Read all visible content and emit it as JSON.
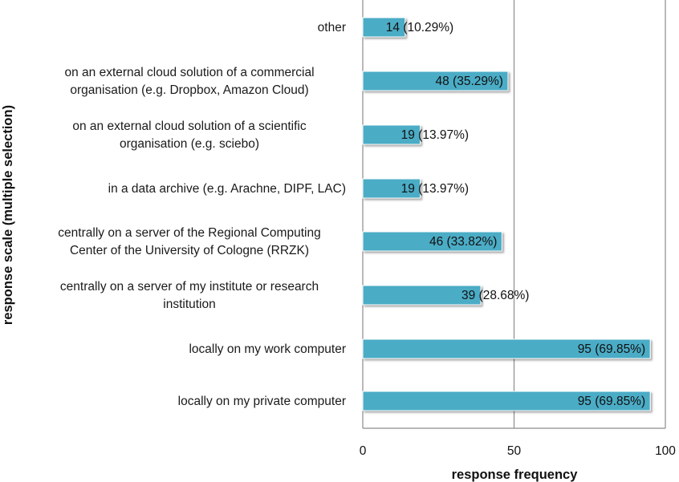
{
  "chart_data": {
    "type": "bar",
    "orientation": "horizontal",
    "categories": [
      [
        "other"
      ],
      [
        "on an external cloud solution  of a commercial",
        "organisation  (e.g. Dropbox,  Amazon Cloud)"
      ],
      [
        "on an external cloud solution  of a scientific",
        "organisation (e.g. sciebo)"
      ],
      [
        "in a data archive (e.g. Arachne, DIPF, LAC)"
      ],
      [
        "centrally on a server of the Regional Computing",
        "Center of the University of Cologne (RRZK)"
      ],
      [
        "centrally on a server of my institute  or research",
        "institution"
      ],
      [
        "locally on my work computer"
      ],
      [
        "locally on my private computer"
      ]
    ],
    "values": [
      14,
      48,
      19,
      19,
      46,
      39,
      95,
      95
    ],
    "data_labels": [
      "14 (10.29%)",
      "48 (35.29%)",
      "19  (13.97%)",
      "19 (13.97%)",
      "46 (33.82%)",
      "39 (28.68%)",
      "95 (69.85%)",
      "95 (69.85%)"
    ],
    "xticks": [
      "0",
      "50",
      "100"
    ],
    "xlim": [
      0,
      100
    ],
    "xlabel": "response frequency",
    "ylabel": "response scale (multiple selection)",
    "bar_color": "#4bacc6",
    "grid": "vertical"
  }
}
